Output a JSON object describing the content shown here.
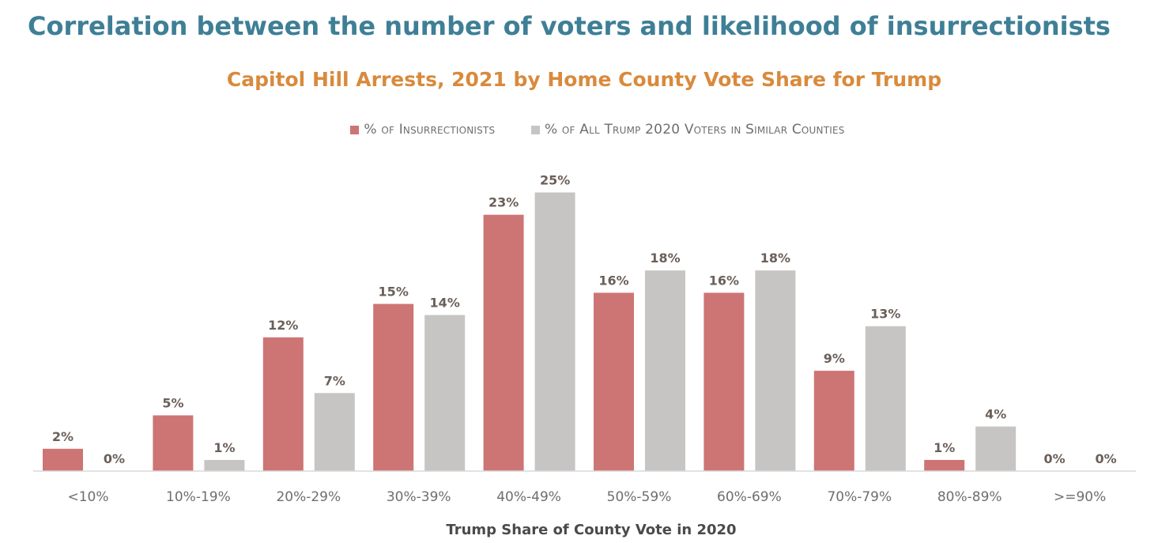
{
  "page": {
    "title": "Correlation between the number of voters and likelihood of insurrectionists"
  },
  "colors": {
    "title": "#3e7f96",
    "subtitle": "#d98a3c",
    "insurrectionists": "#cd7574",
    "voters": "#c6c5c3",
    "axis": "#d9d9d9"
  },
  "chart_data": {
    "type": "bar",
    "title": "Capitol Hill Arrests, 2021 by Home County Vote Share for Trump",
    "xlabel": "Trump Share of County Vote in 2020",
    "ylabel": "",
    "ylim": [
      0,
      25
    ],
    "grid": false,
    "legend_position": "top",
    "categories": [
      "<10%",
      "10%-19%",
      "20%-29%",
      "30%-39%",
      "40%-49%",
      "50%-59%",
      "60%-69%",
      "70%-79%",
      "80%-89%",
      ">=90%"
    ],
    "series": [
      {
        "name": "% of Insurrectionists",
        "color": "#cd7574",
        "values": [
          2,
          5,
          12,
          15,
          23,
          16,
          16,
          9,
          1,
          0
        ],
        "labels": [
          "2%",
          "5%",
          "12%",
          "15%",
          "23%",
          "16%",
          "16%",
          "9%",
          "1%",
          "0%"
        ]
      },
      {
        "name": "% of All Trump 2020 Voters in Similar Counties",
        "color": "#c6c5c3",
        "values": [
          0,
          1,
          7,
          14,
          25,
          18,
          18,
          13,
          4,
          0
        ],
        "labels": [
          "0%",
          "1%",
          "7%",
          "14%",
          "25%",
          "18%",
          "18%",
          "13%",
          "4%",
          "0%"
        ]
      }
    ]
  }
}
